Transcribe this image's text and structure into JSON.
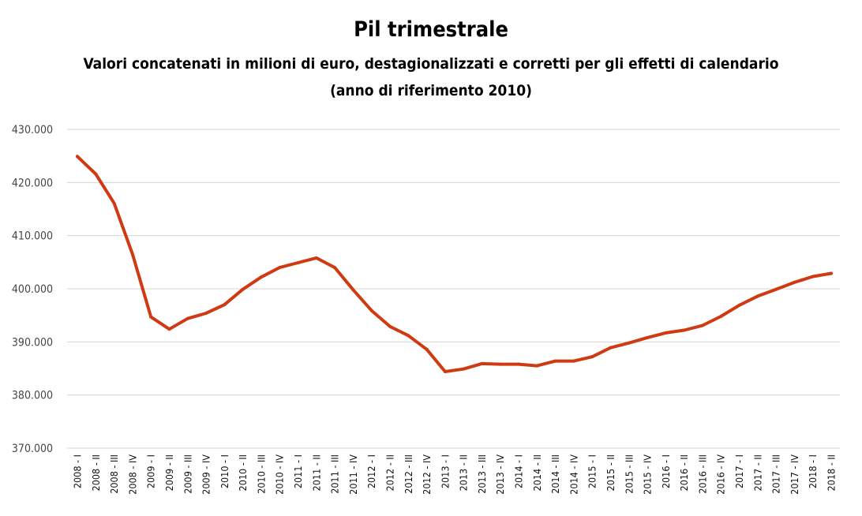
{
  "chart_data": {
    "type": "line",
    "title": "Pil trimestrale",
    "subtitle": "Valori concatenati in milioni di euro, destagionalizzati e corretti per gli effetti di calendario",
    "subtitle2": "(anno di riferimento 2010)",
    "xlabel": "",
    "ylabel": "",
    "ylim": [
      370000,
      430000
    ],
    "y_ticks": [
      "370.000",
      "380.000",
      "390.000",
      "400.000",
      "410.000",
      "420.000",
      "430.000"
    ],
    "grid": true,
    "legend": "none",
    "line_color": "#d03a12",
    "categories": [
      "2008 - I",
      "2008 - II",
      "2008 - III",
      "2008 - IV",
      "2009 - I",
      "2009 - II",
      "2009 - III",
      "2009 - IV",
      "2010 - I",
      "2010 - II",
      "2010 - III",
      "2010 - IV",
      "2011 - I",
      "2011 - II",
      "2011 - III",
      "2011 - IV",
      "2012 - I",
      "2012 - II",
      "2012 - III",
      "2012 - IV",
      "2013 - I",
      "2013 - II",
      "2013 - III",
      "2013 - IV",
      "2014 - I",
      "2014 - II",
      "2014 - III",
      "2014 - IV",
      "2015 - I",
      "2015 - II",
      "2015 - III",
      "2015 - IV",
      "2016 - I",
      "2016 - II",
      "2016 - III",
      "2016 - IV",
      "2017 - I",
      "2017 - II",
      "2017 - III",
      "2017 - IV",
      "2018 - I",
      "2018 - II"
    ],
    "values": [
      424900,
      421600,
      416100,
      406500,
      394700,
      392400,
      394400,
      395400,
      397000,
      399900,
      402200,
      404000,
      404900,
      405800,
      404000,
      399800,
      395900,
      392900,
      391200,
      388600,
      384400,
      384900,
      385900,
      385800,
      385800,
      385500,
      386400,
      386400,
      387200,
      388900,
      389800,
      390800,
      391700,
      392200,
      393100,
      394800,
      396900,
      398600,
      399900,
      401200,
      402300,
      402900
    ]
  }
}
